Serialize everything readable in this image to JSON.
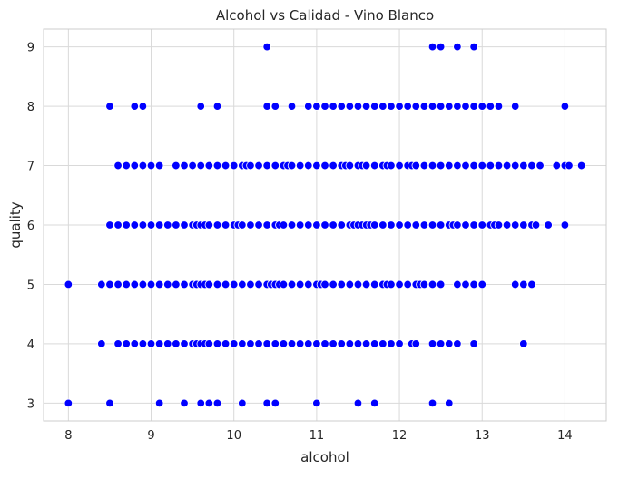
{
  "chart_data": {
    "type": "scatter",
    "title": "Alcohol vs Calidad - Vino Blanco",
    "xlabel": "alcohol",
    "ylabel": "quality",
    "xlim": [
      7.7,
      14.5
    ],
    "ylim": [
      2.7,
      9.3
    ],
    "xticks": [
      8,
      9,
      10,
      11,
      12,
      13,
      14
    ],
    "yticks": [
      3,
      4,
      5,
      6,
      7,
      8,
      9
    ],
    "grid": true,
    "point_color": "#0000ff",
    "point_edge_color": "#ffffff",
    "points_by_quality": {
      "3": [
        8.0,
        8.5,
        9.1,
        9.4,
        9.6,
        9.7,
        9.8,
        10.1,
        10.4,
        10.5,
        11.0,
        11.5,
        11.7,
        12.4,
        12.6
      ],
      "4": [
        8.4,
        8.6,
        8.7,
        8.8,
        8.9,
        9.0,
        9.1,
        9.2,
        9.3,
        9.4,
        9.5,
        9.55,
        9.6,
        9.65,
        9.7,
        9.8,
        9.9,
        10.0,
        10.1,
        10.2,
        10.3,
        10.4,
        10.5,
        10.6,
        10.7,
        10.8,
        10.9,
        11.0,
        11.1,
        11.2,
        11.3,
        11.4,
        11.5,
        11.6,
        11.7,
        11.8,
        11.9,
        12.0,
        12.15,
        12.2,
        12.4,
        12.5,
        12.6,
        12.7,
        12.9,
        13.5
      ],
      "5": [
        8.0,
        8.4,
        8.5,
        8.6,
        8.7,
        8.8,
        8.9,
        9.0,
        9.1,
        9.2,
        9.3,
        9.4,
        9.5,
        9.55,
        9.6,
        9.65,
        9.7,
        9.8,
        9.9,
        10.0,
        10.1,
        10.2,
        10.3,
        10.4,
        10.45,
        10.5,
        10.55,
        10.6,
        10.7,
        10.8,
        10.9,
        11.0,
        11.05,
        11.1,
        11.2,
        11.3,
        11.4,
        11.5,
        11.6,
        11.7,
        11.8,
        11.85,
        11.9,
        12.0,
        12.1,
        12.2,
        12.25,
        12.3,
        12.4,
        12.5,
        12.7,
        12.8,
        12.9,
        13.0,
        13.4,
        13.5,
        13.6
      ],
      "6": [
        8.5,
        8.6,
        8.7,
        8.8,
        8.9,
        9.0,
        9.1,
        9.2,
        9.3,
        9.4,
        9.5,
        9.55,
        9.6,
        9.65,
        9.7,
        9.8,
        9.9,
        10.0,
        10.05,
        10.1,
        10.2,
        10.3,
        10.4,
        10.5,
        10.55,
        10.6,
        10.7,
        10.8,
        10.9,
        11.0,
        11.1,
        11.2,
        11.3,
        11.4,
        11.45,
        11.5,
        11.55,
        11.6,
        11.65,
        11.7,
        11.8,
        11.9,
        12.0,
        12.1,
        12.2,
        12.3,
        12.4,
        12.5,
        12.6,
        12.65,
        12.7,
        12.8,
        12.9,
        13.0,
        13.1,
        13.15,
        13.2,
        13.3,
        13.4,
        13.5,
        13.6,
        13.65,
        13.8,
        14.0
      ],
      "7": [
        8.6,
        8.7,
        8.8,
        8.9,
        9.0,
        9.1,
        9.3,
        9.4,
        9.5,
        9.6,
        9.7,
        9.8,
        9.9,
        10.0,
        10.1,
        10.15,
        10.2,
        10.3,
        10.4,
        10.5,
        10.6,
        10.65,
        10.7,
        10.8,
        10.9,
        11.0,
        11.1,
        11.2,
        11.3,
        11.35,
        11.4,
        11.5,
        11.55,
        11.6,
        11.7,
        11.8,
        11.85,
        11.9,
        12.0,
        12.1,
        12.15,
        12.2,
        12.3,
        12.4,
        12.5,
        12.6,
        12.7,
        12.8,
        12.9,
        13.0,
        13.1,
        13.2,
        13.3,
        13.4,
        13.5,
        13.6,
        13.7,
        13.9,
        14.0,
        14.05,
        14.2
      ],
      "8": [
        8.5,
        8.8,
        8.9,
        9.6,
        9.8,
        10.4,
        10.5,
        10.7,
        10.9,
        11.0,
        11.1,
        11.2,
        11.3,
        11.4,
        11.5,
        11.6,
        11.7,
        11.8,
        11.9,
        12.0,
        12.1,
        12.2,
        12.3,
        12.4,
        12.5,
        12.6,
        12.7,
        12.8,
        12.9,
        13.0,
        13.1,
        13.2,
        13.4,
        14.0
      ],
      "9": [
        10.4,
        12.4,
        12.5,
        12.7,
        12.9
      ]
    }
  }
}
